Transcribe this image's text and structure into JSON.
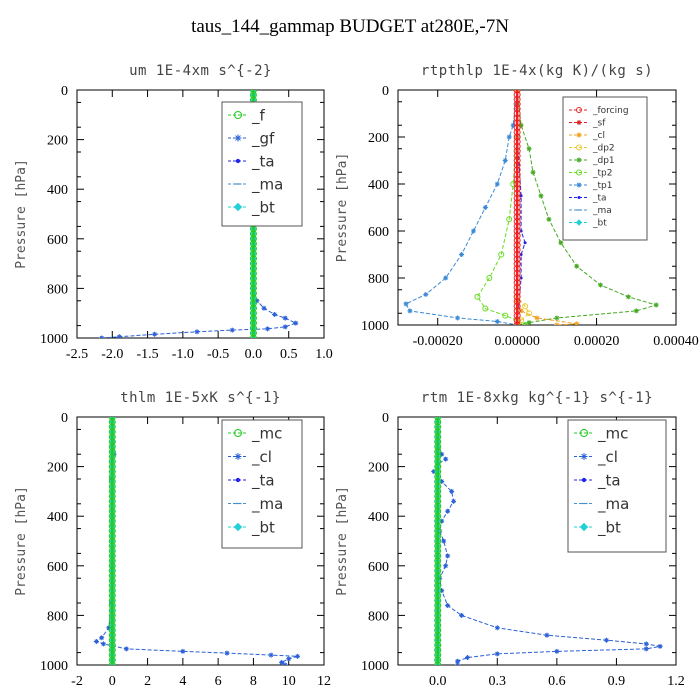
{
  "suptitle": "taus_144_gammap  BUDGET at280E,-7N",
  "chart_data": [
    {
      "type": "line",
      "title": "um  1E-4xm s^{-2}",
      "ylabel": "Pressure [hPa]",
      "xlim": [
        -2.5,
        1.0
      ],
      "ylim": [
        1000,
        0
      ],
      "xticks": [
        "-2.5",
        "-2.0",
        "-1.5",
        "-1.0",
        "-0.5",
        "0.0",
        "0.5",
        "1.0"
      ],
      "xtick_values": [
        -2.5,
        -2.0,
        -1.5,
        -1.0,
        -0.5,
        0.0,
        0.5,
        1.0
      ],
      "yticks": [
        "0",
        "200",
        "400",
        "600",
        "800",
        "1000"
      ],
      "ytick_values": [
        0,
        200,
        400,
        600,
        800,
        1000
      ],
      "legend_position": "top-right",
      "legend": [
        {
          "name": "_f",
          "color": "#22cc22",
          "marker": "circle"
        },
        {
          "name": "_gf",
          "color": "#2a5fd6",
          "marker": "star"
        },
        {
          "name": "_ta",
          "color": "#2222ee",
          "marker": "dot"
        },
        {
          "name": "_ma",
          "color": "#4a90c8",
          "marker": "dash"
        },
        {
          "name": "_bt",
          "color": "#22d0d8",
          "marker": "diamond"
        }
      ],
      "series": [
        {
          "name": "_gf",
          "color": "#2a5fd6",
          "points": [
            [
              0,
              0
            ],
            [
              0,
              100
            ],
            [
              -0.05,
              150
            ],
            [
              0,
              200
            ],
            [
              0,
              400
            ],
            [
              0,
              600
            ],
            [
              0,
              800
            ],
            [
              0.05,
              850
            ],
            [
              0.15,
              880
            ],
            [
              0.3,
              905
            ],
            [
              0.45,
              920
            ],
            [
              0.6,
              940
            ],
            [
              0.45,
              955
            ],
            [
              0.2,
              963
            ],
            [
              -0.3,
              968
            ],
            [
              -0.8,
              975
            ],
            [
              -1.4,
              985
            ],
            [
              -1.9,
              995
            ],
            [
              -2.15,
              1000
            ]
          ]
        },
        {
          "name": "_ta",
          "color": "#2222ee",
          "points": [
            [
              0,
              0
            ],
            [
              0,
              1000
            ]
          ]
        },
        {
          "name": "_ma",
          "color": "#4a90c8",
          "points": [
            [
              0,
              0
            ],
            [
              0,
              1000
            ]
          ]
        },
        {
          "name": "_bt",
          "color": "#22d0d8",
          "points": [
            [
              0,
              0
            ],
            [
              0,
              1000
            ]
          ]
        },
        {
          "name": "_f",
          "color": "#22cc22",
          "points": [
            [
              0,
              0
            ],
            [
              0,
              1000
            ]
          ]
        }
      ]
    },
    {
      "type": "line",
      "title": "rtpthlp  1E-4x(kg K)/(kg s)",
      "ylabel": "Pressure [hPa]",
      "xlim": [
        -0.0003,
        0.0004
      ],
      "ylim": [
        1000,
        0
      ],
      "xticks": [
        "-0.00020",
        "0.00000",
        "0.00020",
        "0.00040"
      ],
      "xtick_values": [
        -0.0002,
        0.0,
        0.0002,
        0.0004
      ],
      "yticks": [
        "0",
        "200",
        "400",
        "600",
        "800",
        "1000"
      ],
      "ytick_values": [
        0,
        200,
        400,
        600,
        800,
        1000
      ],
      "legend_position": "top-right",
      "legend": [
        {
          "name": "_forcing",
          "color": "#ee2222",
          "marker": "circle"
        },
        {
          "name": "_sf",
          "color": "#dd2222",
          "marker": "star"
        },
        {
          "name": "_cl",
          "color": "#f0a020",
          "marker": "star"
        },
        {
          "name": "_dp2",
          "color": "#e8c830",
          "marker": "circle"
        },
        {
          "name": "_dp1",
          "color": "#44aa22",
          "marker": "star"
        },
        {
          "name": "_tp2",
          "color": "#66dd22",
          "marker": "circle"
        },
        {
          "name": "_tp1",
          "color": "#3a8ad6",
          "marker": "star"
        },
        {
          "name": "_ta",
          "color": "#2222ee",
          "marker": "dot"
        },
        {
          "name": "_ma",
          "color": "#4a90c8",
          "marker": "dash"
        },
        {
          "name": "_bt",
          "color": "#22d0d8",
          "marker": "diamond"
        }
      ],
      "series": [
        {
          "name": "_tp1",
          "color": "#3a8ad6",
          "points": [
            [
              0,
              0
            ],
            [
              -1e-05,
              150
            ],
            [
              -2e-05,
              200
            ],
            [
              -3e-05,
              300
            ],
            [
              -5e-05,
              400
            ],
            [
              -8e-05,
              500
            ],
            [
              -0.00011,
              600
            ],
            [
              -0.00014,
              700
            ],
            [
              -0.00018,
              800
            ],
            [
              -0.00023,
              870
            ],
            [
              -0.00028,
              910
            ],
            [
              -0.00027,
              940
            ],
            [
              -0.00015,
              970
            ],
            [
              -5e-05,
              985
            ],
            [
              0,
              1000
            ]
          ]
        },
        {
          "name": "_dp1",
          "color": "#44aa22",
          "points": [
            [
              0,
              0
            ],
            [
              1e-05,
              150
            ],
            [
              3e-05,
              250
            ],
            [
              4e-05,
              350
            ],
            [
              6e-05,
              450
            ],
            [
              8e-05,
              550
            ],
            [
              0.00011,
              650
            ],
            [
              0.00015,
              750
            ],
            [
              0.00021,
              830
            ],
            [
              0.00028,
              880
            ],
            [
              0.00035,
              915
            ],
            [
              0.0003,
              940
            ],
            [
              0.0001,
              970
            ],
            [
              3e-05,
              990
            ],
            [
              0,
              1000
            ]
          ]
        },
        {
          "name": "_tp2",
          "color": "#66dd22",
          "points": [
            [
              0,
              0
            ],
            [
              0,
              200
            ],
            [
              -1e-05,
              400
            ],
            [
              -2e-05,
              550
            ],
            [
              -4e-05,
              700
            ],
            [
              -7e-05,
              800
            ],
            [
              -0.0001,
              880
            ],
            [
              -8e-05,
              930
            ],
            [
              -3e-05,
              960
            ],
            [
              0,
              980
            ],
            [
              2e-05,
              1000
            ]
          ]
        },
        {
          "name": "_ta",
          "color": "#2222ee",
          "points": [
            [
              0,
              0
            ],
            [
              0,
              200
            ],
            [
              1e-05,
              450
            ],
            [
              1e-05,
              600
            ],
            [
              2e-05,
              650
            ],
            [
              1e-05,
              700
            ],
            [
              1e-05,
              800
            ],
            [
              0,
              1000
            ]
          ]
        },
        {
          "name": "_cl",
          "color": "#f0a020",
          "points": [
            [
              0,
              0
            ],
            [
              0,
              900
            ],
            [
              1e-05,
              940
            ],
            [
              5e-05,
              970
            ],
            [
              0.00015,
              995
            ],
            [
              0.0001,
              1000
            ]
          ]
        },
        {
          "name": "_dp2",
          "color": "#e8c830",
          "points": [
            [
              0,
              0
            ],
            [
              0,
              880
            ],
            [
              2e-05,
              920
            ],
            [
              3e-05,
              950
            ],
            [
              1e-05,
              980
            ],
            [
              0,
              1000
            ]
          ]
        },
        {
          "name": "_forcing",
          "color": "#ee2222",
          "points": [
            [
              0,
              0
            ],
            [
              0,
              1000
            ]
          ]
        }
      ]
    },
    {
      "type": "line",
      "title": "thlm  1E-5xK s^{-1}",
      "ylabel": "Pressure [hPa]",
      "xlim": [
        -2,
        12
      ],
      "ylim": [
        1000,
        0
      ],
      "xticks": [
        "-2",
        "0",
        "2",
        "4",
        "6",
        "8",
        "10",
        "12"
      ],
      "xtick_values": [
        -2,
        0,
        2,
        4,
        6,
        8,
        10,
        12
      ],
      "yticks": [
        "0",
        "200",
        "400",
        "600",
        "800",
        "1000"
      ],
      "ytick_values": [
        0,
        200,
        400,
        600,
        800,
        1000
      ],
      "legend_position": "top-right",
      "legend": [
        {
          "name": "_mc",
          "color": "#22cc22",
          "marker": "circle"
        },
        {
          "name": "_cl",
          "color": "#2a5fd6",
          "marker": "star"
        },
        {
          "name": "_ta",
          "color": "#2222ee",
          "marker": "dot"
        },
        {
          "name": "_ma",
          "color": "#4a90c8",
          "marker": "dash"
        },
        {
          "name": "_bt",
          "color": "#22d0d8",
          "marker": "diamond"
        }
      ],
      "series": [
        {
          "name": "_cl",
          "color": "#2a5fd6",
          "points": [
            [
              0,
              0
            ],
            [
              0.05,
              100
            ],
            [
              0.1,
              150
            ],
            [
              -0.05,
              250
            ],
            [
              0,
              400
            ],
            [
              0,
              600
            ],
            [
              -0.05,
              750
            ],
            [
              -0.2,
              850
            ],
            [
              -0.6,
              890
            ],
            [
              -0.9,
              905
            ],
            [
              -0.5,
              915
            ],
            [
              0.8,
              935
            ],
            [
              4,
              945
            ],
            [
              6.5,
              952
            ],
            [
              9,
              960
            ],
            [
              10.5,
              965
            ],
            [
              10,
              975
            ],
            [
              9.6,
              990
            ],
            [
              9.8,
              1000
            ]
          ]
        },
        {
          "name": "_ta",
          "color": "#2222ee",
          "points": [
            [
              0,
              0
            ],
            [
              0,
              1000
            ]
          ]
        },
        {
          "name": "_ma",
          "color": "#4a90c8",
          "points": [
            [
              0,
              0
            ],
            [
              0,
              1000
            ]
          ]
        },
        {
          "name": "_bt",
          "color": "#22d0d8",
          "points": [
            [
              0,
              0
            ],
            [
              0,
              1000
            ]
          ]
        },
        {
          "name": "_mc",
          "color": "#22cc22",
          "points": [
            [
              0,
              0
            ],
            [
              0,
              1000
            ]
          ]
        }
      ]
    },
    {
      "type": "line",
      "title": "rtm  1E-8xkg kg^{-1} s^{-1}",
      "ylabel": "Pressure [hPa]",
      "xlim": [
        -0.2,
        1.2
      ],
      "ylim": [
        1000,
        0
      ],
      "xticks": [
        "0.0",
        "0.3",
        "0.6",
        "0.9",
        "1.2"
      ],
      "xtick_values": [
        0.0,
        0.3,
        0.6,
        0.9,
        1.2
      ],
      "yticks": [
        "0",
        "200",
        "400",
        "600",
        "800",
        "1000"
      ],
      "ytick_values": [
        0,
        200,
        400,
        600,
        800,
        1000
      ],
      "legend_position": "top-right",
      "legend": [
        {
          "name": "_mc",
          "color": "#22cc22",
          "marker": "circle"
        },
        {
          "name": "_cl",
          "color": "#2a5fd6",
          "marker": "star"
        },
        {
          "name": "_ta",
          "color": "#2222ee",
          "marker": "dot"
        },
        {
          "name": "_ma",
          "color": "#4a90c8",
          "marker": "dash"
        },
        {
          "name": "_bt",
          "color": "#22d0d8",
          "marker": "diamond"
        }
      ],
      "series": [
        {
          "name": "_cl",
          "color": "#2a5fd6",
          "points": [
            [
              0,
              0
            ],
            [
              0,
              100
            ],
            [
              0.02,
              150
            ],
            [
              0.04,
              170
            ],
            [
              0,
              190
            ],
            [
              -0.02,
              220
            ],
            [
              0.02,
              260
            ],
            [
              0.07,
              300
            ],
            [
              0.08,
              340
            ],
            [
              0.05,
              380
            ],
            [
              0.02,
              420
            ],
            [
              0.01,
              460
            ],
            [
              0.03,
              500
            ],
            [
              0.05,
              560
            ],
            [
              0.04,
              600
            ],
            [
              0.01,
              650
            ],
            [
              0.02,
              700
            ],
            [
              0.05,
              760
            ],
            [
              0.12,
              800
            ],
            [
              0.3,
              850
            ],
            [
              0.55,
              880
            ],
            [
              0.85,
              900
            ],
            [
              1.05,
              915
            ],
            [
              1.12,
              925
            ],
            [
              1.05,
              935
            ],
            [
              0.6,
              945
            ],
            [
              0.3,
              955
            ],
            [
              0.15,
              970
            ],
            [
              0.1,
              985
            ],
            [
              0.1,
              1000
            ]
          ]
        },
        {
          "name": "_ta",
          "color": "#2222ee",
          "points": [
            [
              0,
              0
            ],
            [
              0,
              1000
            ]
          ]
        },
        {
          "name": "_ma",
          "color": "#4a90c8",
          "points": [
            [
              0,
              0
            ],
            [
              0,
              1000
            ]
          ]
        },
        {
          "name": "_bt",
          "color": "#22d0d8",
          "points": [
            [
              0,
              0
            ],
            [
              0,
              1000
            ]
          ]
        },
        {
          "name": "_mc",
          "color": "#22cc22",
          "points": [
            [
              0,
              0
            ],
            [
              0,
              1000
            ]
          ]
        }
      ]
    }
  ]
}
